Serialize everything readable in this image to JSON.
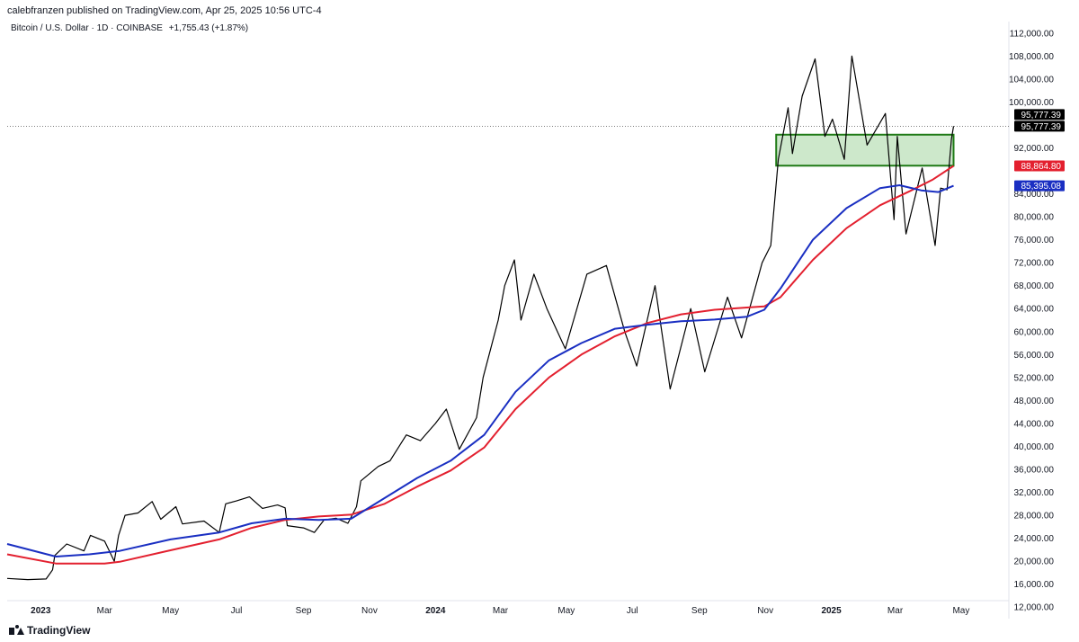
{
  "header": {
    "published": "calebfranzen published on TradingView.com, Apr 25, 2025 10:56 UTC-4",
    "symbol": "Bitcoin / U.S. Dollar · 1D · COINBASE",
    "change": "+1,755.43 (+1.87%)"
  },
  "footer": {
    "brand": "TradingView"
  },
  "chart_data": {
    "type": "line",
    "x_ticks": [
      "2023",
      "Mar",
      "May",
      "Jul",
      "Sep",
      "Nov",
      "2024",
      "Mar",
      "May",
      "Jul",
      "Sep",
      "Nov",
      "2025",
      "Mar",
      "May"
    ],
    "y_ticks": [
      "112,000.00",
      "108,000.00",
      "104,000.00",
      "100,000.00",
      "92,000.00",
      "84,000.00",
      "80,000.00",
      "76,000.00",
      "72,000.00",
      "68,000.00",
      "64,000.00",
      "60,000.00",
      "56,000.00",
      "52,000.00",
      "48,000.00",
      "44,000.00",
      "40,000.00",
      "36,000.00",
      "32,000.00",
      "28,000.00",
      "24,000.00",
      "20,000.00",
      "16,000.00",
      "12,000.00"
    ],
    "ylim": [
      10000,
      114000
    ],
    "xlim": [
      "2022-12-01",
      "2025-05-31"
    ],
    "price_labels": [
      {
        "text": "95,777.39",
        "color": "#000000"
      },
      {
        "text": "95,777.39",
        "color": "#000000"
      },
      {
        "text": "88,864.80",
        "color": "#e3202f"
      },
      {
        "text": "85,395.08",
        "color": "#1a2fc2"
      }
    ],
    "last_price": 95777.39,
    "highlight_zone": {
      "x_start": "2024-11-11",
      "x_end": "2025-04-24",
      "y_low": 88900,
      "y_high": 94300,
      "fill": "#cde8cb",
      "stroke": "#1f7a16"
    },
    "series": [
      {
        "color": "#000000",
        "points": [
          [
            "2022-12-01",
            17000
          ],
          [
            "2022-12-20",
            16800
          ],
          [
            "2023-01-06",
            16900
          ],
          [
            "2023-01-12",
            18500
          ],
          [
            "2023-01-14",
            21000
          ],
          [
            "2023-01-25",
            23000
          ],
          [
            "2023-02-10",
            21800
          ],
          [
            "2023-02-16",
            24500
          ],
          [
            "2023-03-01",
            23500
          ],
          [
            "2023-03-10",
            20000
          ],
          [
            "2023-03-14",
            24500
          ],
          [
            "2023-03-20",
            28000
          ],
          [
            "2023-04-01",
            28400
          ],
          [
            "2023-04-14",
            30400
          ],
          [
            "2023-04-22",
            27300
          ],
          [
            "2023-05-06",
            29500
          ],
          [
            "2023-05-12",
            26500
          ],
          [
            "2023-06-01",
            27000
          ],
          [
            "2023-06-15",
            25000
          ],
          [
            "2023-06-21",
            30000
          ],
          [
            "2023-07-01",
            30500
          ],
          [
            "2023-07-13",
            31200
          ],
          [
            "2023-07-25",
            29200
          ],
          [
            "2023-08-08",
            29800
          ],
          [
            "2023-08-15",
            29300
          ],
          [
            "2023-08-17",
            26200
          ],
          [
            "2023-09-01",
            25800
          ],
          [
            "2023-09-11",
            25000
          ],
          [
            "2023-09-20",
            27200
          ],
          [
            "2023-10-01",
            27500
          ],
          [
            "2023-10-12",
            26600
          ],
          [
            "2023-10-20",
            29500
          ],
          [
            "2023-10-24",
            34000
          ],
          [
            "2023-11-09",
            36500
          ],
          [
            "2023-11-20",
            37500
          ],
          [
            "2023-12-05",
            42000
          ],
          [
            "2023-12-18",
            41000
          ],
          [
            "2024-01-01",
            44000
          ],
          [
            "2024-01-11",
            46500
          ],
          [
            "2024-01-23",
            39500
          ],
          [
            "2024-02-08",
            45000
          ],
          [
            "2024-02-14",
            52000
          ],
          [
            "2024-02-28",
            62000
          ],
          [
            "2024-03-05",
            68000
          ],
          [
            "2024-03-14",
            72500
          ],
          [
            "2024-03-20",
            62000
          ],
          [
            "2024-04-01",
            70000
          ],
          [
            "2024-04-13",
            64000
          ],
          [
            "2024-04-30",
            57000
          ],
          [
            "2024-05-20",
            70000
          ],
          [
            "2024-06-07",
            71500
          ],
          [
            "2024-06-24",
            60000
          ],
          [
            "2024-07-05",
            54000
          ],
          [
            "2024-07-22",
            68000
          ],
          [
            "2024-08-05",
            50000
          ],
          [
            "2024-08-24",
            64000
          ],
          [
            "2024-09-06",
            53000
          ],
          [
            "2024-09-27",
            66000
          ],
          [
            "2024-10-10",
            58900
          ],
          [
            "2024-10-29",
            72000
          ],
          [
            "2024-11-06",
            75000
          ],
          [
            "2024-11-13",
            90000
          ],
          [
            "2024-11-22",
            99000
          ],
          [
            "2024-11-26",
            91000
          ],
          [
            "2024-12-05",
            101000
          ],
          [
            "2024-12-17",
            107500
          ],
          [
            "2024-12-26",
            94000
          ],
          [
            "2025-01-02",
            97000
          ],
          [
            "2025-01-13",
            90000
          ],
          [
            "2025-01-20",
            108000
          ],
          [
            "2025-02-03",
            92500
          ],
          [
            "2025-02-20",
            98000
          ],
          [
            "2025-02-28",
            79500
          ],
          [
            "2025-03-03",
            94000
          ],
          [
            "2025-03-11",
            77000
          ],
          [
            "2025-03-26",
            88500
          ],
          [
            "2025-04-07",
            75000
          ],
          [
            "2025-04-12",
            85000
          ],
          [
            "2025-04-18",
            84700
          ],
          [
            "2025-04-22",
            93500
          ],
          [
            "2025-04-24",
            95777.39
          ]
        ]
      },
      {
        "color": "#e3202f",
        "points": [
          [
            "2022-12-01",
            21200
          ],
          [
            "2023-01-15",
            19600
          ],
          [
            "2023-03-01",
            19600
          ],
          [
            "2023-03-15",
            19900
          ],
          [
            "2023-05-01",
            21900
          ],
          [
            "2023-06-15",
            23800
          ],
          [
            "2023-07-15",
            25800
          ],
          [
            "2023-08-15",
            27200
          ],
          [
            "2023-09-15",
            27800
          ],
          [
            "2023-10-15",
            28100
          ],
          [
            "2023-11-15",
            30000
          ],
          [
            "2023-12-15",
            33000
          ],
          [
            "2024-01-15",
            35800
          ],
          [
            "2024-02-15",
            39800
          ],
          [
            "2024-03-15",
            46500
          ],
          [
            "2024-04-15",
            52000
          ],
          [
            "2024-05-15",
            56000
          ],
          [
            "2024-06-15",
            59200
          ],
          [
            "2024-07-15",
            61500
          ],
          [
            "2024-08-15",
            63000
          ],
          [
            "2024-09-15",
            63800
          ],
          [
            "2024-10-15",
            64200
          ],
          [
            "2024-10-31",
            64400
          ],
          [
            "2024-11-15",
            66000
          ],
          [
            "2024-12-15",
            72500
          ],
          [
            "2025-01-15",
            78000
          ],
          [
            "2025-02-15",
            82000
          ],
          [
            "2025-03-15",
            84500
          ],
          [
            "2025-04-05",
            86500
          ],
          [
            "2025-04-24",
            88864.8
          ]
        ]
      },
      {
        "color": "#1a2fc2",
        "points": [
          [
            "2022-12-01",
            23000
          ],
          [
            "2023-01-15",
            20800
          ],
          [
            "2023-02-15",
            21200
          ],
          [
            "2023-03-15",
            21800
          ],
          [
            "2023-05-01",
            23800
          ],
          [
            "2023-06-15",
            25000
          ],
          [
            "2023-07-15",
            26600
          ],
          [
            "2023-08-15",
            27400
          ],
          [
            "2023-09-15",
            27200
          ],
          [
            "2023-10-15",
            27400
          ],
          [
            "2023-11-15",
            31000
          ],
          [
            "2023-12-15",
            34500
          ],
          [
            "2024-01-15",
            37500
          ],
          [
            "2024-02-15",
            42000
          ],
          [
            "2024-03-15",
            49500
          ],
          [
            "2024-04-15",
            55000
          ],
          [
            "2024-05-15",
            58000
          ],
          [
            "2024-06-15",
            60500
          ],
          [
            "2024-07-15",
            61200
          ],
          [
            "2024-08-15",
            61800
          ],
          [
            "2024-09-15",
            62100
          ],
          [
            "2024-10-15",
            62600
          ],
          [
            "2024-10-31",
            63800
          ],
          [
            "2024-11-15",
            67500
          ],
          [
            "2024-12-15",
            76000
          ],
          [
            "2025-01-15",
            81500
          ],
          [
            "2025-02-15",
            85000
          ],
          [
            "2025-03-05",
            85500
          ],
          [
            "2025-03-25",
            84600
          ],
          [
            "2025-04-10",
            84300
          ],
          [
            "2025-04-24",
            85395.08
          ]
        ]
      }
    ]
  }
}
